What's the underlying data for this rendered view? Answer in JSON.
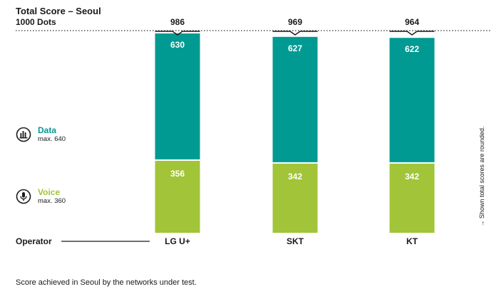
{
  "chart_data": {
    "type": "bar",
    "stacked": true,
    "title": "Total Score – Seoul",
    "subtitle": "1000 Dots",
    "xlabel": "Operator",
    "categories": [
      "LG U+",
      "SKT",
      "KT"
    ],
    "totals": [
      986,
      969,
      964
    ],
    "series": [
      {
        "name": "Voice",
        "max_label": "max. 360",
        "color": "#a2c438",
        "values": [
          356,
          342,
          342
        ]
      },
      {
        "name": "Data",
        "max_label": "max. 640",
        "color": "#009a93",
        "values": [
          630,
          627,
          622
        ]
      }
    ],
    "ylim": [
      0,
      1000
    ],
    "grid": false,
    "legend_position": "left",
    "footnote": "Score achieved in Seoul by the networks under test.",
    "side_note": "→ Shown total scores are rounded.",
    "icons": {
      "data": "bar-chart-circle-icon",
      "voice": "microphone-circle-icon"
    }
  }
}
